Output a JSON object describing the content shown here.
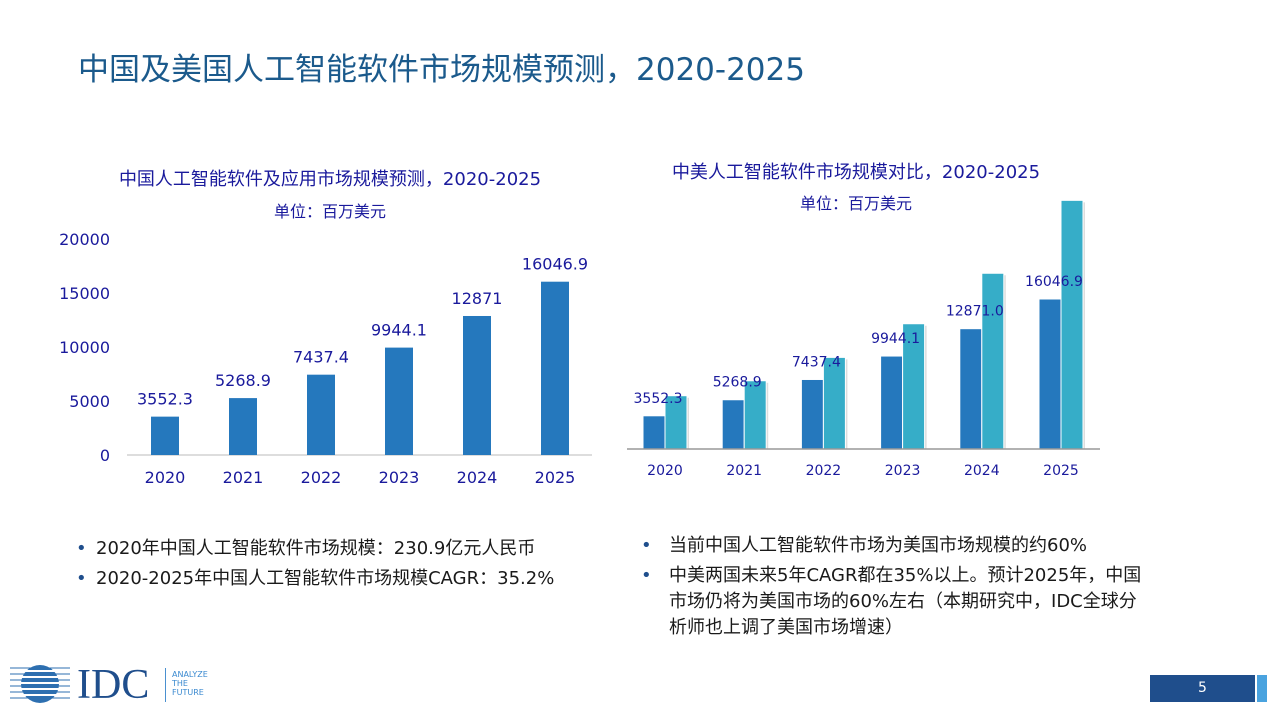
{
  "title": "中国及美国人工智能软件市场规模预测，2020-2025",
  "chart_data": [
    {
      "type": "bar",
      "title": "中国人工智能软件及应用市场规模预测，2020-2025",
      "subtitle": "单位：百万美元",
      "categories": [
        "2020",
        "2021",
        "2022",
        "2023",
        "2024",
        "2025"
      ],
      "values": [
        3552.3,
        5268.9,
        7437.4,
        9944.1,
        12871,
        16046.9
      ],
      "data_labels": [
        "3552.3",
        "5268.9",
        "7437.4",
        "9944.1",
        "12871",
        "16046.9"
      ],
      "yticks": [
        "0",
        "5000",
        "10000",
        "15000",
        "20000"
      ],
      "ylim": [
        0,
        20000
      ],
      "color": "#2578bd",
      "grid": false
    },
    {
      "type": "bar",
      "title": "中美人工智能软件市场规模对比，2020-2025",
      "subtitle": "单位：百万美元",
      "categories": [
        "2020",
        "2021",
        "2022",
        "2023",
        "2024",
        "2025"
      ],
      "series": [
        {
          "values": [
            3552.3,
            5268.9,
            7437.4,
            9944.1,
            12871.0,
            16046.9
          ],
          "color": "#2578bd"
        },
        {
          "values": [
            5700,
            7300,
            9800,
            13400,
            18800,
            26600
          ],
          "color": "#36adc8"
        }
      ],
      "data_labels": [
        "3552.3",
        "5268.9",
        "7437.4",
        "9944.1",
        "12871.0",
        "16046.9"
      ],
      "grid": false
    }
  ],
  "left_bullets": [
    "2020年中国人工智能软件市场规模：230.9亿元人民币",
    "2020-2025年中国人工智能软件市场规模CAGR：35.2%"
  ],
  "right_bullets": [
    "当前中国人工智能软件市场为美国市场规模的约60%",
    "中美两国未来5年CAGR都在35%以上。预计2025年，中国市场仍将为美国市场的60%左右（本期研究中，IDC全球分析师也上调了美国市场增速）"
  ],
  "logo": {
    "text": "IDC",
    "tagline": [
      "ANALYZE",
      "THE",
      "FUTURE"
    ]
  },
  "page_number": "5"
}
